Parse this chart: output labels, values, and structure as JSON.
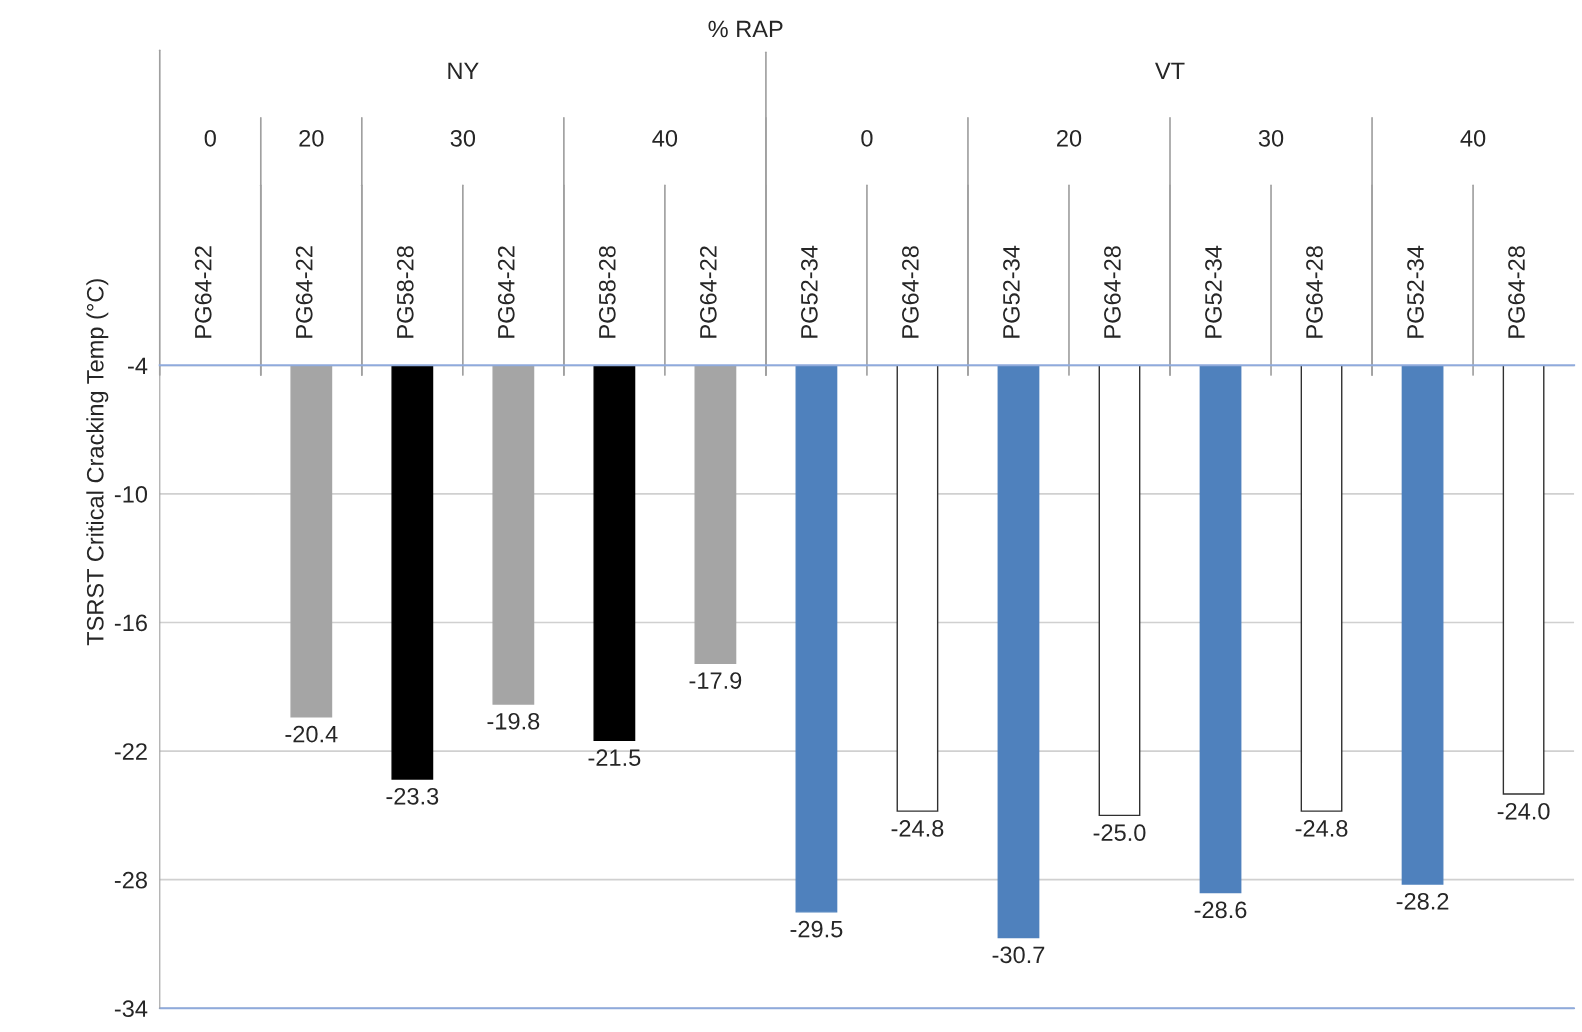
{
  "chart_data": {
    "type": "bar",
    "title": "% RAP",
    "ylabel": "TSRST Critical Cracking Temp (°C)",
    "categories": [
      "PG64-22",
      "PG64-22",
      "PG58-28",
      "PG64-22",
      "PG58-28",
      "PG64-22",
      "PG52-34",
      "PG64-28",
      "PG52-34",
      "PG64-28",
      "PG52-34",
      "PG64-28",
      "PG52-34",
      "PG64-28"
    ],
    "annotations": [
      "NY",
      "VT",
      "0",
      "20",
      "30",
      "40",
      "0",
      "20",
      "30",
      "40"
    ],
    "values": [
      null,
      -20.4,
      -23.3,
      -19.8,
      -21.5,
      -17.9,
      -29.5,
      -24.8,
      -30.7,
      -25.0,
      -28.6,
      -24.8,
      -28.2,
      -24.0
    ],
    "value_labels": [
      null,
      "-20.4",
      "-23.3",
      "-19.8",
      "-21.5",
      "-17.9",
      "-29.5",
      "-24.8",
      "-30.7",
      "-25.0",
      "-28.6",
      "-24.8",
      "-28.2",
      "-24.0"
    ],
    "colors": [
      "#a5a5a5",
      "#a5a5a5",
      "#000000",
      "#a5a5a5",
      "#000000",
      "#a5a5a5",
      "#4f81bd",
      "#ffffff",
      "#4f81bd",
      "#ffffff",
      "#4f81bd",
      "#ffffff",
      "#4f81bd",
      "#ffffff"
    ],
    "ylim": [
      -34,
      -4
    ],
    "yticks": [
      -4,
      -10,
      -16,
      -22,
      -28,
      -34
    ],
    "grid": "y"
  }
}
